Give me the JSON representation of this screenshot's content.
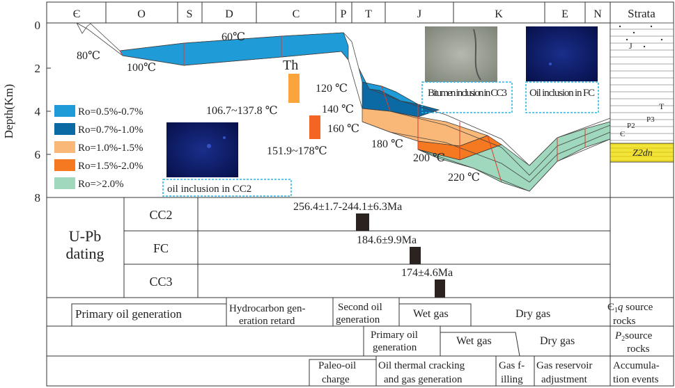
{
  "chart_data": {
    "type": "burial-history",
    "ylabel": "Depth(Km)",
    "y_ticks": [
      "0",
      "2",
      "4",
      "6",
      "8"
    ],
    "ylim": [
      0,
      8
    ],
    "periods": [
      "Є",
      "O",
      "S",
      "D",
      "C",
      "P",
      "T",
      "J",
      "K",
      "E",
      "N"
    ],
    "strata_title": "Strata",
    "strata_labels": [
      "J",
      "T",
      "P3",
      "P2",
      "Є",
      "Z2dn"
    ],
    "isotherms": [
      "60℃",
      "80℃",
      "100℃",
      "120 ℃",
      "140 ℃",
      "160 ℃",
      "180 ℃",
      "200 ℃",
      "220 ℃"
    ],
    "legend": [
      {
        "label": "Ro=0.5%-0.7%",
        "color": "#1f9bd8"
      },
      {
        "label": "Ro=0.7%-1.0%",
        "color": "#0b69a3"
      },
      {
        "label": "Ro=1.0%-1.5%",
        "color": "#f9b877"
      },
      {
        "label": "Ro=1.5%-2.0%",
        "color": "#f47920"
      },
      {
        "label": "Ro=>2.0%",
        "color": "#9fd8bd"
      }
    ],
    "homogenization": {
      "label": "Th",
      "ranges": [
        {
          "label": "106.7~137.8 ℃",
          "color": "#f9a53b"
        },
        {
          "label": "151.9~178℃",
          "color": "#f26522"
        }
      ]
    },
    "photos": [
      "oil inclusion in CC2",
      "Bitumen inclusion in CC3",
      "Oil inclusion in FC"
    ],
    "dating": {
      "title": "U-Pb dating",
      "samples": [
        {
          "name": "CC2",
          "age": "256.4±1.7-244.1±6.3Ma"
        },
        {
          "name": "FC",
          "age": "184.6±9.9Ma"
        },
        {
          "name": "CC3",
          "age": "174±4.6Ma"
        }
      ]
    },
    "events": [
      {
        "row": "Є1q source rocks",
        "stages": [
          "Primary oil generation",
          "Hydrocarbon generation retard",
          "Second oil generation",
          "Wet gas",
          "Dry gas"
        ]
      },
      {
        "row": "P2 source rocks",
        "stages": [
          "Primary oil generation",
          "Wet gas",
          "Dry gas"
        ]
      },
      {
        "row": "Accumulation events",
        "stages": [
          "Paleo-oil charge",
          "Oil thermal cracking and gas generation",
          "Gas filling",
          "Gas reservoir adjustment"
        ]
      }
    ]
  }
}
